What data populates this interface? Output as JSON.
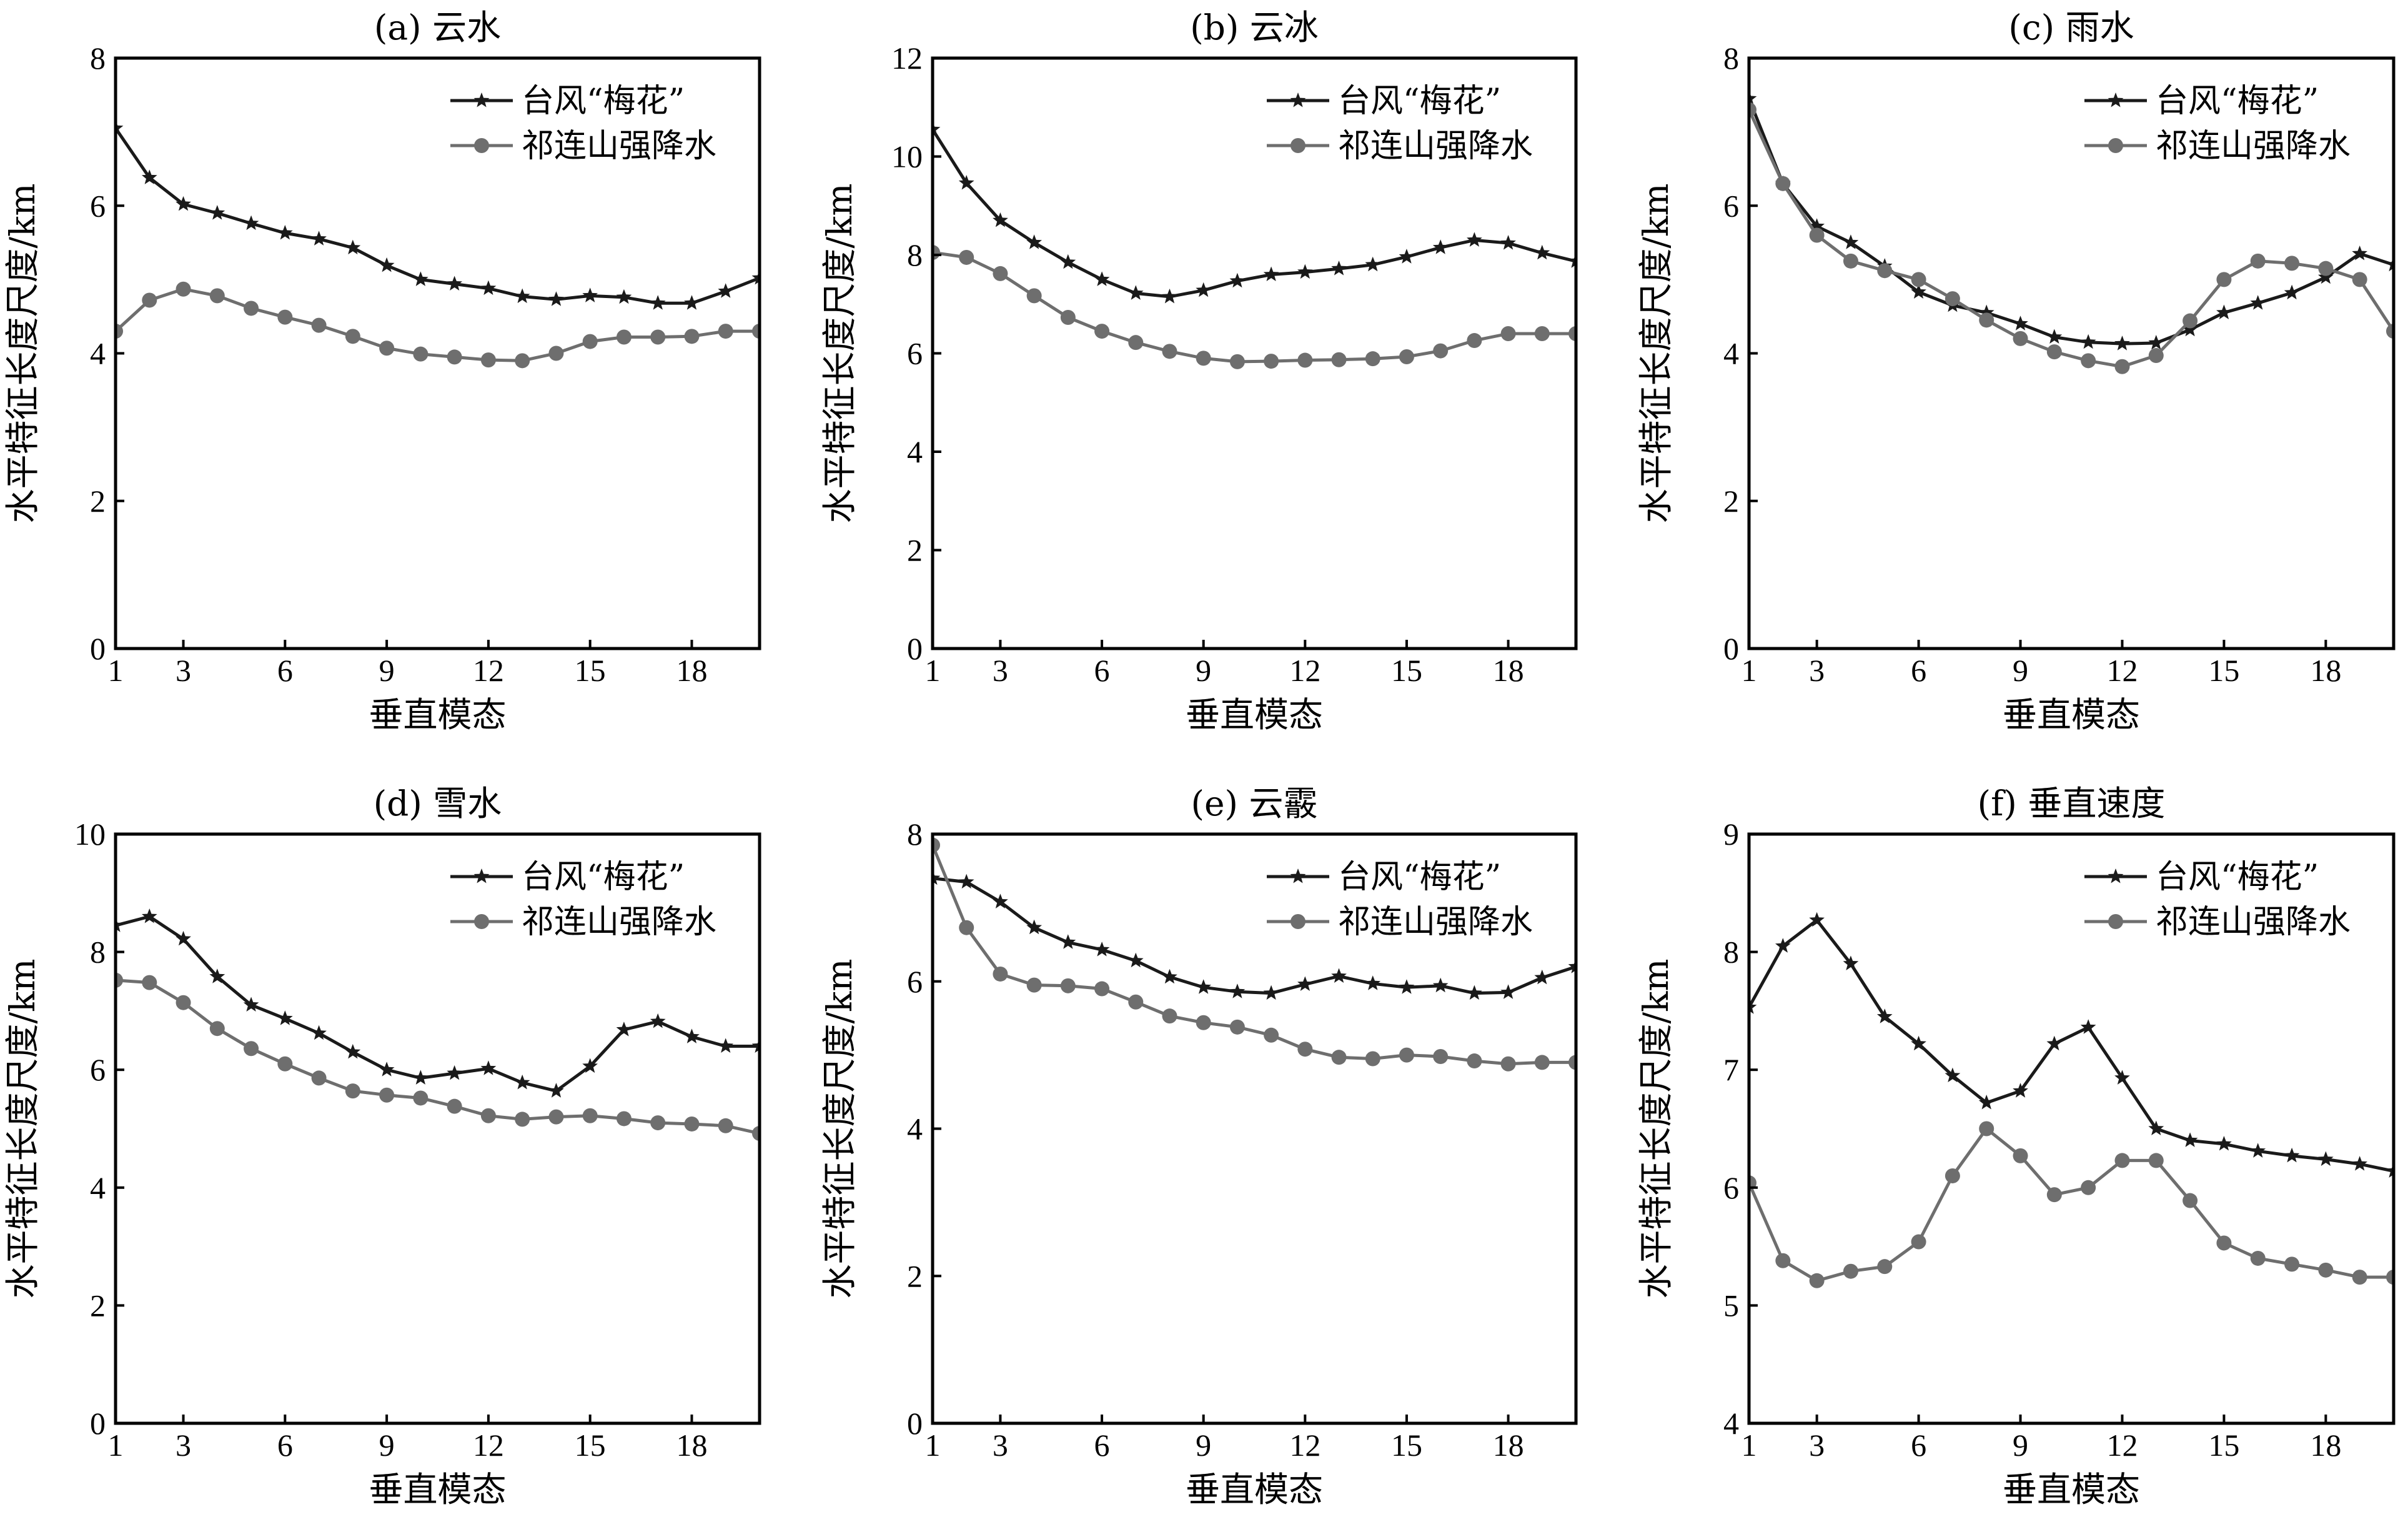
{
  "colors": {
    "typhoon": "#1a1a1a",
    "qilian": "#6e6e6e",
    "axis": "#000000"
  },
  "legend": {
    "typhoon": "台风“梅花”",
    "qilian": "祁连山强降水"
  },
  "chart_data": [
    {
      "type": "line",
      "title": "(a) 云水",
      "xlabel": "垂直模态",
      "ylabel": "水平特征长度尺度/km",
      "xlim": [
        1,
        20
      ],
      "ylim": [
        0,
        8
      ],
      "xticks": [
        1,
        3,
        6,
        9,
        12,
        15,
        18
      ],
      "yticks": [
        0,
        2,
        4,
        6,
        8
      ],
      "legend_position": "top-right",
      "x": [
        1,
        2,
        3,
        4,
        5,
        6,
        7,
        8,
        9,
        10,
        11,
        12,
        13,
        14,
        15,
        16,
        17,
        18,
        19,
        20
      ],
      "series": [
        {
          "name": "台风“梅花”",
          "marker": "star",
          "values": [
            7.05,
            6.38,
            6.02,
            5.9,
            5.76,
            5.63,
            5.55,
            5.43,
            5.19,
            5.0,
            4.94,
            4.88,
            4.77,
            4.73,
            4.78,
            4.76,
            4.68,
            4.68,
            4.84,
            5.02
          ]
        },
        {
          "name": "祁连山强降水",
          "marker": "circle",
          "values": [
            4.3,
            4.72,
            4.87,
            4.78,
            4.61,
            4.49,
            4.38,
            4.23,
            4.07,
            3.99,
            3.95,
            3.91,
            3.9,
            4.0,
            4.16,
            4.22,
            4.22,
            4.23,
            4.3,
            4.3
          ]
        }
      ]
    },
    {
      "type": "line",
      "title": "(b) 云冰",
      "xlabel": "垂直模态",
      "ylabel": "水平特征长度尺度/km",
      "xlim": [
        1,
        20
      ],
      "ylim": [
        0,
        12
      ],
      "xticks": [
        1,
        3,
        6,
        9,
        12,
        15,
        18
      ],
      "yticks": [
        0,
        2,
        4,
        6,
        8,
        10,
        12
      ],
      "legend_position": "top-right",
      "x": [
        1,
        2,
        3,
        4,
        5,
        6,
        7,
        8,
        9,
        10,
        11,
        12,
        13,
        14,
        15,
        16,
        17,
        18,
        19,
        20
      ],
      "series": [
        {
          "name": "台风“梅花”",
          "marker": "star",
          "values": [
            10.55,
            9.46,
            8.7,
            8.25,
            7.85,
            7.5,
            7.22,
            7.15,
            7.28,
            7.47,
            7.6,
            7.65,
            7.72,
            7.8,
            7.96,
            8.15,
            8.3,
            8.24,
            8.04,
            7.87
          ]
        },
        {
          "name": "祁连山强降水",
          "marker": "circle",
          "values": [
            8.05,
            7.95,
            7.62,
            7.17,
            6.73,
            6.45,
            6.22,
            6.04,
            5.9,
            5.83,
            5.84,
            5.86,
            5.87,
            5.89,
            5.93,
            6.05,
            6.26,
            6.4,
            6.4,
            6.4
          ]
        }
      ]
    },
    {
      "type": "line",
      "title": "(c) 雨水",
      "xlabel": "垂直模态",
      "ylabel": "水平特征长度尺度/km",
      "xlim": [
        1,
        20
      ],
      "ylim": [
        0,
        8
      ],
      "xticks": [
        1,
        3,
        6,
        9,
        12,
        15,
        18
      ],
      "yticks": [
        0,
        2,
        4,
        6,
        8
      ],
      "legend_position": "top-right",
      "x": [
        1,
        2,
        3,
        4,
        5,
        6,
        7,
        8,
        9,
        10,
        11,
        12,
        13,
        14,
        15,
        16,
        17,
        18,
        19,
        20
      ],
      "series": [
        {
          "name": "台风“梅花”",
          "marker": "star",
          "values": [
            7.45,
            6.3,
            5.72,
            5.5,
            5.18,
            4.83,
            4.65,
            4.55,
            4.4,
            4.22,
            4.15,
            4.13,
            4.14,
            4.32,
            4.55,
            4.68,
            4.82,
            5.03,
            5.35,
            5.2
          ]
        },
        {
          "name": "祁连山强降水",
          "marker": "circle",
          "values": [
            7.3,
            6.3,
            5.6,
            5.25,
            5.12,
            5.0,
            4.74,
            4.45,
            4.2,
            4.02,
            3.9,
            3.82,
            3.97,
            4.44,
            5.0,
            5.25,
            5.22,
            5.15,
            5.0,
            4.3
          ]
        }
      ]
    },
    {
      "type": "line",
      "title": "(d) 雪水",
      "xlabel": "垂直模态",
      "ylabel": "水平特征长度尺度/km",
      "xlim": [
        1,
        20
      ],
      "ylim": [
        0,
        10
      ],
      "xticks": [
        1,
        3,
        6,
        9,
        12,
        15,
        18
      ],
      "yticks": [
        0,
        2,
        4,
        6,
        8,
        10
      ],
      "legend_position": "top-right",
      "x": [
        1,
        2,
        3,
        4,
        5,
        6,
        7,
        8,
        9,
        10,
        11,
        12,
        13,
        14,
        15,
        16,
        17,
        18,
        19,
        20
      ],
      "series": [
        {
          "name": "台风“梅花”",
          "marker": "star",
          "values": [
            8.45,
            8.6,
            8.22,
            7.58,
            7.1,
            6.87,
            6.62,
            6.3,
            6.0,
            5.86,
            5.94,
            6.02,
            5.78,
            5.64,
            6.06,
            6.68,
            6.82,
            6.56,
            6.4,
            6.4
          ]
        },
        {
          "name": "祁连山强降水",
          "marker": "circle",
          "values": [
            7.52,
            7.48,
            7.14,
            6.7,
            6.36,
            6.1,
            5.86,
            5.64,
            5.57,
            5.52,
            5.38,
            5.22,
            5.16,
            5.2,
            5.22,
            5.17,
            5.1,
            5.08,
            5.05,
            4.92
          ]
        }
      ]
    },
    {
      "type": "line",
      "title": "(e) 云霰",
      "xlabel": "垂直模态",
      "ylabel": "水平特征长度尺度/km",
      "xlim": [
        1,
        20
      ],
      "ylim": [
        0,
        8
      ],
      "xticks": [
        1,
        3,
        6,
        9,
        12,
        15,
        18
      ],
      "yticks": [
        0,
        2,
        4,
        6,
        8
      ],
      "legend_position": "top-right",
      "x": [
        1,
        2,
        3,
        4,
        5,
        6,
        7,
        8,
        9,
        10,
        11,
        12,
        13,
        14,
        15,
        16,
        17,
        18,
        19,
        20
      ],
      "series": [
        {
          "name": "台风“梅花”",
          "marker": "star",
          "values": [
            7.4,
            7.35,
            7.08,
            6.73,
            6.53,
            6.43,
            6.28,
            6.06,
            5.92,
            5.86,
            5.84,
            5.96,
            6.07,
            5.97,
            5.92,
            5.94,
            5.84,
            5.85,
            6.05,
            6.2
          ]
        },
        {
          "name": "祁连山强降水",
          "marker": "circle",
          "values": [
            7.85,
            6.73,
            6.1,
            5.95,
            5.94,
            5.9,
            5.72,
            5.53,
            5.44,
            5.38,
            5.27,
            5.08,
            4.97,
            4.95,
            5.0,
            4.98,
            4.92,
            4.88,
            4.9,
            4.9
          ]
        }
      ]
    },
    {
      "type": "line",
      "title": "(f) 垂直速度",
      "xlabel": "垂直模态",
      "ylabel": "水平特征长度尺度/km",
      "xlim": [
        1,
        20
      ],
      "ylim": [
        4,
        9
      ],
      "xticks": [
        1,
        3,
        6,
        9,
        12,
        15,
        18
      ],
      "yticks": [
        4,
        5,
        6,
        7,
        8,
        9
      ],
      "legend_position": "top-right",
      "x": [
        1,
        2,
        3,
        4,
        5,
        6,
        7,
        8,
        9,
        10,
        11,
        12,
        13,
        14,
        15,
        16,
        17,
        18,
        19,
        20
      ],
      "series": [
        {
          "name": "台风“梅花”",
          "marker": "star",
          "values": [
            7.53,
            8.05,
            8.27,
            7.9,
            7.45,
            7.22,
            6.95,
            6.72,
            6.82,
            7.22,
            7.36,
            6.93,
            6.5,
            6.4,
            6.37,
            6.31,
            6.27,
            6.24,
            6.2,
            6.14
          ]
        },
        {
          "name": "祁连山强降水",
          "marker": "circle",
          "values": [
            6.04,
            5.38,
            5.21,
            5.29,
            5.33,
            5.54,
            6.1,
            6.5,
            6.27,
            5.94,
            6.0,
            6.23,
            6.23,
            5.89,
            5.53,
            5.4,
            5.35,
            5.3,
            5.24,
            5.24
          ]
        }
      ]
    }
  ]
}
